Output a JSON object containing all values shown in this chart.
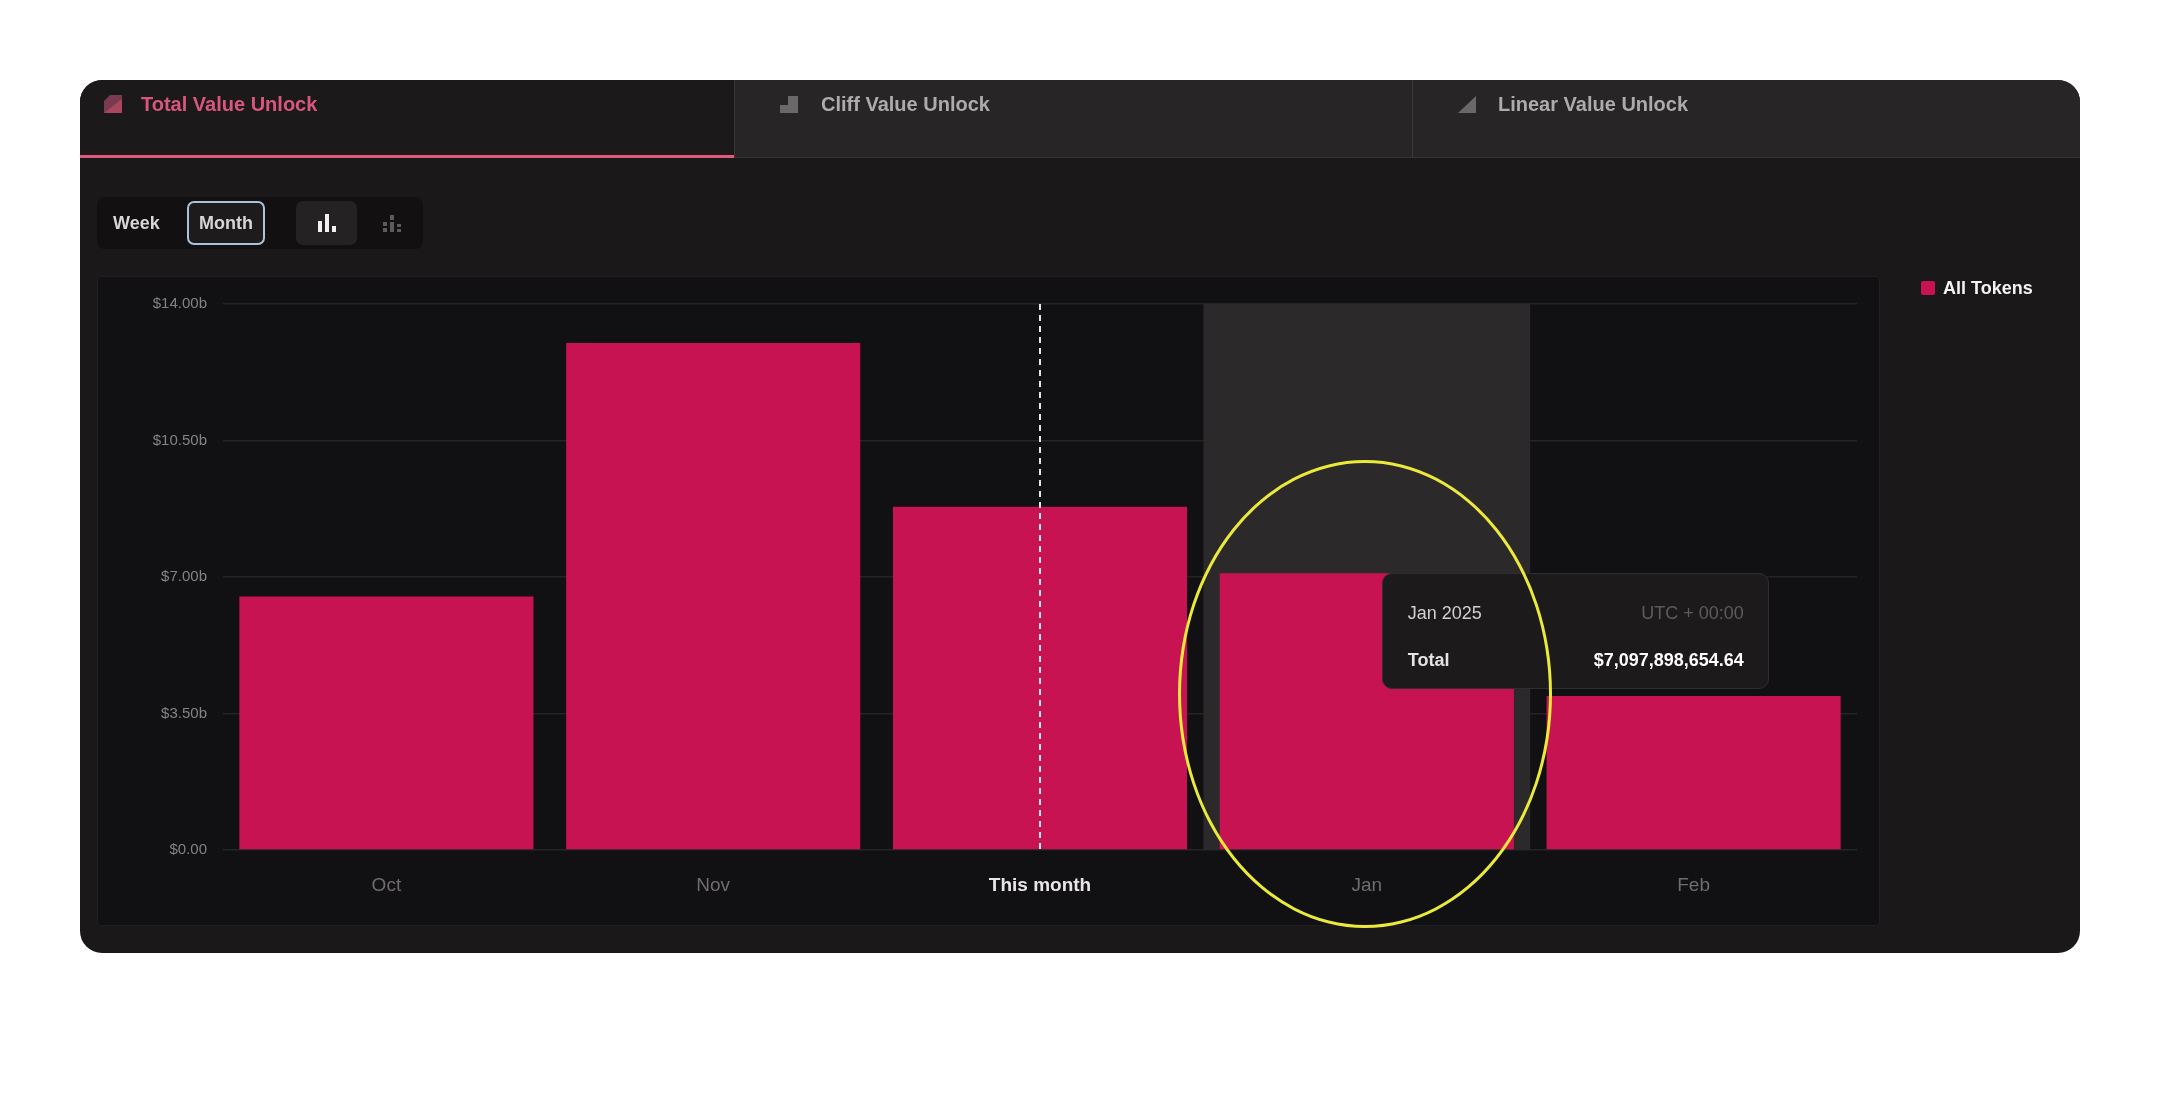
{
  "chart_data": {
    "type": "bar",
    "title": "Total Value Unlock",
    "annotations": [
      "Cliff Value Unlock",
      "Linear Value Unlock",
      "Week",
      "Month",
      "Jan 2025",
      "UTC + 00:00",
      "Total",
      "$7,097,898,654.64"
    ],
    "categories": [
      "Oct",
      "Nov",
      "This month",
      "Jan",
      "Feb"
    ],
    "series": [
      {
        "name": "All Tokens",
        "color": "#c81352",
        "values": [
          6500000000,
          13000000000,
          8800000000,
          7097898654.64,
          3950000000
        ]
      }
    ],
    "ylim": [
      0,
      14000000000
    ],
    "yticks": [
      {
        "value": 0,
        "label": "$0.00"
      },
      {
        "value": 3500000000,
        "label": "$3.50b"
      },
      {
        "value": 7000000000,
        "label": "$7.00b"
      },
      {
        "value": 10500000000,
        "label": "$10.50b"
      },
      {
        "value": 14000000000,
        "label": "$14.00b"
      }
    ],
    "ref_lines": [
      {
        "axis": "x",
        "value": "This month",
        "color": "#e8e4e6",
        "line_style": "dashed"
      }
    ],
    "bands": [
      {
        "axis": "x",
        "from": "Jan",
        "to": "Jan",
        "color": "#2b292a"
      }
    ],
    "grid": "y",
    "legend": "top right"
  }
}
